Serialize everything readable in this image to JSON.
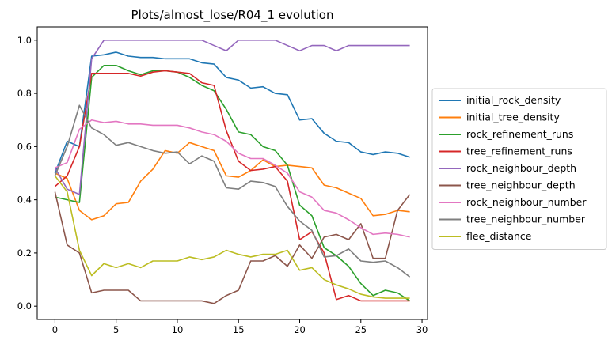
{
  "chart_data": {
    "type": "line",
    "title": "Plots/almost_lose/R04_1 evolution",
    "xlabel": "",
    "ylabel": "",
    "xlim": [
      -1.45,
      30.45
    ],
    "ylim": [
      -0.05,
      1.05
    ],
    "xticks": [
      0,
      5,
      10,
      15,
      20,
      25,
      30
    ],
    "yticks": [
      0.0,
      0.2,
      0.4,
      0.6,
      0.8,
      1.0
    ],
    "xtick_labels": [
      "0",
      "5",
      "10",
      "15",
      "20",
      "25",
      "30"
    ],
    "ytick_labels": [
      "0.0",
      "0.2",
      "0.4",
      "0.6",
      "0.8",
      "1.0"
    ],
    "grid": false,
    "legend_position": "outside-right",
    "x": [
      0,
      1,
      2,
      3,
      4,
      5,
      6,
      7,
      8,
      9,
      10,
      11,
      12,
      13,
      14,
      15,
      16,
      17,
      18,
      19,
      20,
      21,
      22,
      23,
      24,
      25,
      26,
      27,
      28,
      29
    ],
    "series": [
      {
        "name": "initial_rock_density",
        "color": "#1f77b4",
        "values": [
          0.5,
          0.62,
          0.6,
          0.94,
          0.945,
          0.955,
          0.94,
          0.935,
          0.935,
          0.93,
          0.93,
          0.93,
          0.915,
          0.91,
          0.86,
          0.85,
          0.82,
          0.825,
          0.8,
          0.795,
          0.7,
          0.705,
          0.65,
          0.62,
          0.615,
          0.58,
          0.57,
          0.58,
          0.575,
          0.56
        ]
      },
      {
        "name": "initial_tree_density",
        "color": "#ff7f0e",
        "values": [
          0.5,
          0.48,
          0.36,
          0.325,
          0.34,
          0.385,
          0.39,
          0.47,
          0.515,
          0.585,
          0.575,
          0.615,
          0.6,
          0.585,
          0.49,
          0.485,
          0.51,
          0.55,
          0.525,
          0.53,
          0.525,
          0.52,
          0.455,
          0.445,
          0.425,
          0.405,
          0.34,
          0.345,
          0.36,
          0.355
        ]
      },
      {
        "name": "rock_refinement_runs",
        "color": "#2ca02c",
        "values": [
          0.41,
          0.4,
          0.39,
          0.86,
          0.905,
          0.905,
          0.885,
          0.87,
          0.885,
          0.885,
          0.88,
          0.86,
          0.83,
          0.81,
          0.74,
          0.655,
          0.645,
          0.6,
          0.585,
          0.53,
          0.38,
          0.34,
          0.22,
          0.19,
          0.15,
          0.085,
          0.04,
          0.06,
          0.05,
          0.02
        ]
      },
      {
        "name": "tree_refinement_runs",
        "color": "#d62728",
        "values": [
          0.45,
          0.49,
          0.6,
          0.875,
          0.875,
          0.875,
          0.875,
          0.865,
          0.88,
          0.885,
          0.88,
          0.875,
          0.84,
          0.83,
          0.66,
          0.545,
          0.51,
          0.515,
          0.525,
          0.47,
          0.25,
          0.28,
          0.2,
          0.025,
          0.04,
          0.02,
          0.02,
          0.02,
          0.02,
          0.02
        ]
      },
      {
        "name": "rock_neighbour_depth",
        "color": "#9467bd",
        "values": [
          0.52,
          0.44,
          0.42,
          0.93,
          1.0,
          1.0,
          1.0,
          1.0,
          1.0,
          1.0,
          1.0,
          1.0,
          1.0,
          0.98,
          0.96,
          1.0,
          1.0,
          1.0,
          1.0,
          0.98,
          0.96,
          0.98,
          0.98,
          0.96,
          0.98,
          0.98,
          0.98,
          0.98,
          0.98,
          0.98
        ]
      },
      {
        "name": "tree_neighbour_depth",
        "color": "#8c564b",
        "values": [
          0.43,
          0.23,
          0.2,
          0.05,
          0.06,
          0.06,
          0.06,
          0.02,
          0.02,
          0.02,
          0.02,
          0.02,
          0.02,
          0.01,
          0.04,
          0.06,
          0.17,
          0.17,
          0.19,
          0.15,
          0.23,
          0.18,
          0.26,
          0.27,
          0.25,
          0.31,
          0.18,
          0.18,
          0.36,
          0.42
        ]
      },
      {
        "name": "rock_neighbour_number",
        "color": "#e377c2",
        "values": [
          0.52,
          0.54,
          0.665,
          0.7,
          0.69,
          0.695,
          0.685,
          0.685,
          0.68,
          0.68,
          0.68,
          0.67,
          0.655,
          0.645,
          0.62,
          0.575,
          0.555,
          0.555,
          0.53,
          0.5,
          0.43,
          0.41,
          0.36,
          0.35,
          0.325,
          0.295,
          0.27,
          0.275,
          0.27,
          0.26
        ]
      },
      {
        "name": "tree_neighbour_number",
        "color": "#7f7f7f",
        "values": [
          0.49,
          0.6,
          0.755,
          0.67,
          0.645,
          0.605,
          0.615,
          0.6,
          0.585,
          0.575,
          0.58,
          0.535,
          0.565,
          0.545,
          0.445,
          0.44,
          0.47,
          0.465,
          0.45,
          0.375,
          0.32,
          0.285,
          0.185,
          0.19,
          0.215,
          0.17,
          0.165,
          0.17,
          0.145,
          0.11
        ]
      },
      {
        "name": "flee_distance",
        "color": "#bcbd22",
        "values": [
          0.49,
          0.43,
          0.21,
          0.115,
          0.16,
          0.145,
          0.16,
          0.145,
          0.17,
          0.17,
          0.17,
          0.185,
          0.175,
          0.185,
          0.21,
          0.195,
          0.185,
          0.195,
          0.195,
          0.21,
          0.135,
          0.145,
          0.1,
          0.08,
          0.065,
          0.045,
          0.035,
          0.03,
          0.03,
          0.03
        ]
      }
    ]
  }
}
